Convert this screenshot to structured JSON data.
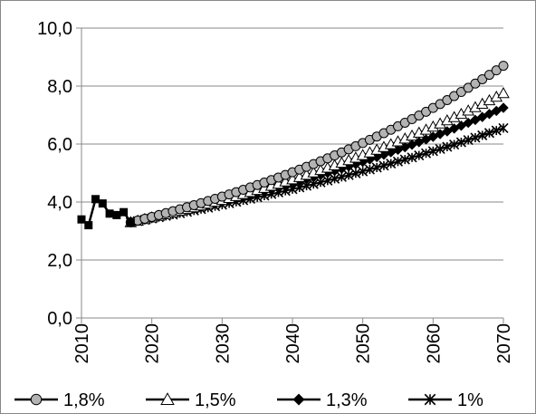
{
  "chart_data": {
    "type": "line",
    "title": "",
    "xlabel": "",
    "ylabel": "",
    "xlim": [
      2010,
      2070
    ],
    "ylim": [
      0,
      10
    ],
    "x_ticks": [
      "2010",
      "2020",
      "2030",
      "2040",
      "2050",
      "2060",
      "2070"
    ],
    "y_ticks": [
      "0,0",
      "2,0",
      "4,0",
      "6,0",
      "8,0",
      "10,0"
    ],
    "grid": "horizontal",
    "legend_position": "bottom",
    "historical": {
      "x": [
        2010,
        2011,
        2012,
        2013,
        2014,
        2015,
        2016,
        2017
      ],
      "y": [
        3.4,
        3.2,
        4.1,
        3.95,
        3.6,
        3.55,
        3.65,
        3.3
      ]
    },
    "series": [
      {
        "name": "1,8%",
        "marker": "circle",
        "fill": "#b3b3b3",
        "start_year": 2017,
        "start_value": 3.3,
        "end_year": 2070,
        "end_value": 8.7
      },
      {
        "name": "1,5%",
        "marker": "triangle",
        "fill": "#ffffff",
        "start_year": 2017,
        "start_value": 3.3,
        "end_year": 2070,
        "end_value": 7.75
      },
      {
        "name": "1,3%",
        "marker": "diamond",
        "fill": "#000000",
        "start_year": 2017,
        "start_value": 3.3,
        "end_year": 2070,
        "end_value": 7.25
      },
      {
        "name": "1%",
        "marker": "star",
        "fill": "#000000",
        "start_year": 2017,
        "start_value": 3.3,
        "end_year": 2070,
        "end_value": 6.55
      }
    ]
  }
}
